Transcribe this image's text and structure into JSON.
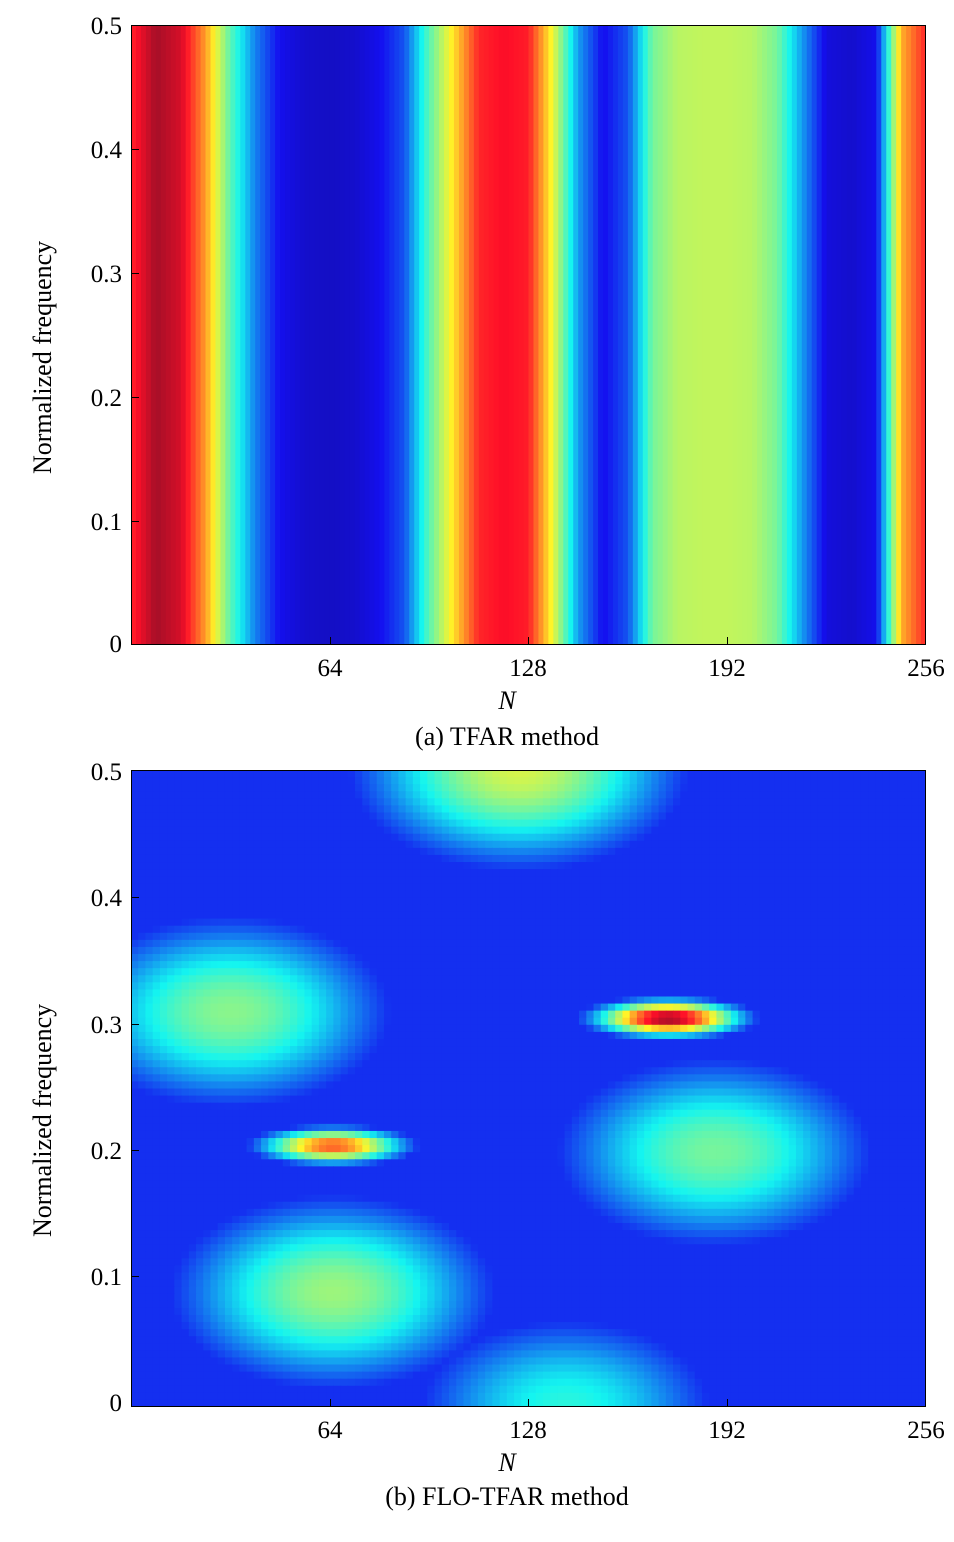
{
  "chart_data": [
    {
      "type": "heatmap",
      "caption": "(a) TFAR method",
      "xlabel": "N",
      "ylabel": "Normalized frequency",
      "xlim": [
        0,
        256
      ],
      "ylim": [
        0,
        0.5
      ],
      "xticks": [
        "64",
        "128",
        "192",
        "256"
      ],
      "yticks": [
        "0",
        "0.1",
        "0.2",
        "0.3",
        "0.4",
        "0.5"
      ],
      "colormap": "jet",
      "description_values": {
        "varies_along": "N",
        "profile_N": [
          0,
          8,
          16,
          24,
          32,
          40,
          48,
          56,
          64,
          72,
          80,
          88,
          96,
          104,
          112,
          120,
          128,
          136,
          144,
          152,
          160,
          168,
          176,
          184,
          192,
          200,
          208,
          216,
          224,
          232,
          240,
          248,
          256
        ],
        "profile_level": [
          0.85,
          0.97,
          0.92,
          0.72,
          0.45,
          0.25,
          0.12,
          0.08,
          0.07,
          0.08,
          0.12,
          0.2,
          0.45,
          0.65,
          0.85,
          0.88,
          0.86,
          0.6,
          0.28,
          0.12,
          0.2,
          0.48,
          0.55,
          0.56,
          0.56,
          0.55,
          0.48,
          0.28,
          0.1,
          0.08,
          0.12,
          0.7,
          0.85
        ]
      }
    },
    {
      "type": "heatmap",
      "caption": "(b) FLO-TFAR method",
      "xlabel": "N",
      "ylabel": "Normalized frequency",
      "xlim": [
        0,
        256
      ],
      "ylim": [
        0,
        0.5
      ],
      "xticks": [
        "64",
        "128",
        "192",
        "256"
      ],
      "yticks": [
        "0",
        "0.1",
        "0.2",
        "0.3",
        "0.4",
        "0.5"
      ],
      "colormap": "jet",
      "description_values": {
        "peaks": [
          {
            "N": 65,
            "f": 0.205,
            "level": 0.8
          },
          {
            "N": 173,
            "f": 0.305,
            "level": 0.98
          }
        ],
        "secondary_regions": [
          {
            "N": 125,
            "f": 0.5,
            "level": 0.58
          },
          {
            "N": 32,
            "f": 0.31,
            "level": 0.5
          },
          {
            "N": 65,
            "f": 0.09,
            "level": 0.52
          },
          {
            "N": 188,
            "f": 0.2,
            "level": 0.48
          },
          {
            "N": 140,
            "f": 0.0,
            "level": 0.4
          }
        ]
      }
    }
  ]
}
